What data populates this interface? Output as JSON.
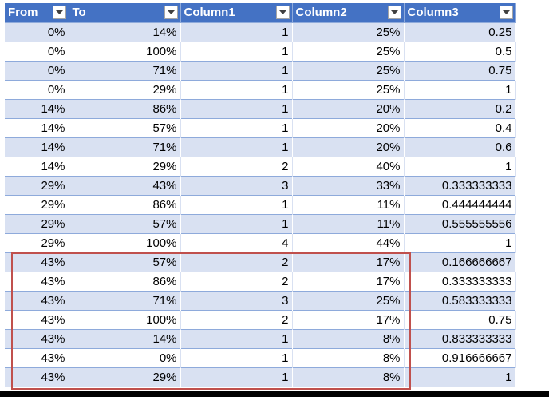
{
  "table": {
    "headers": [
      "From",
      "To",
      "Column1",
      "Column2",
      "Column3"
    ],
    "rows": [
      [
        "0%",
        "14%",
        "1",
        "25%",
        "0.25"
      ],
      [
        "0%",
        "100%",
        "1",
        "25%",
        "0.5"
      ],
      [
        "0%",
        "71%",
        "1",
        "25%",
        "0.75"
      ],
      [
        "0%",
        "29%",
        "1",
        "25%",
        "1"
      ],
      [
        "14%",
        "86%",
        "1",
        "20%",
        "0.2"
      ],
      [
        "14%",
        "57%",
        "1",
        "20%",
        "0.4"
      ],
      [
        "14%",
        "71%",
        "1",
        "20%",
        "0.6"
      ],
      [
        "14%",
        "29%",
        "2",
        "40%",
        "1"
      ],
      [
        "29%",
        "43%",
        "3",
        "33%",
        "0.333333333"
      ],
      [
        "29%",
        "86%",
        "1",
        "11%",
        "0.444444444"
      ],
      [
        "29%",
        "57%",
        "1",
        "11%",
        "0.555555556"
      ],
      [
        "29%",
        "100%",
        "4",
        "44%",
        "1"
      ],
      [
        "43%",
        "57%",
        "2",
        "17%",
        "0.166666667"
      ],
      [
        "43%",
        "86%",
        "2",
        "17%",
        "0.333333333"
      ],
      [
        "43%",
        "71%",
        "3",
        "25%",
        "0.583333333"
      ],
      [
        "43%",
        "100%",
        "2",
        "17%",
        "0.75"
      ],
      [
        "43%",
        "14%",
        "1",
        "8%",
        "0.833333333"
      ],
      [
        "43%",
        "0%",
        "1",
        "8%",
        "0.916666667"
      ],
      [
        "43%",
        "29%",
        "1",
        "8%",
        "1"
      ]
    ]
  },
  "colors": {
    "header": "#4472c4",
    "band": "#d9e1f2",
    "highlight": "#c0504d"
  },
  "icons": {
    "filter": "dropdown-arrow-icon"
  }
}
